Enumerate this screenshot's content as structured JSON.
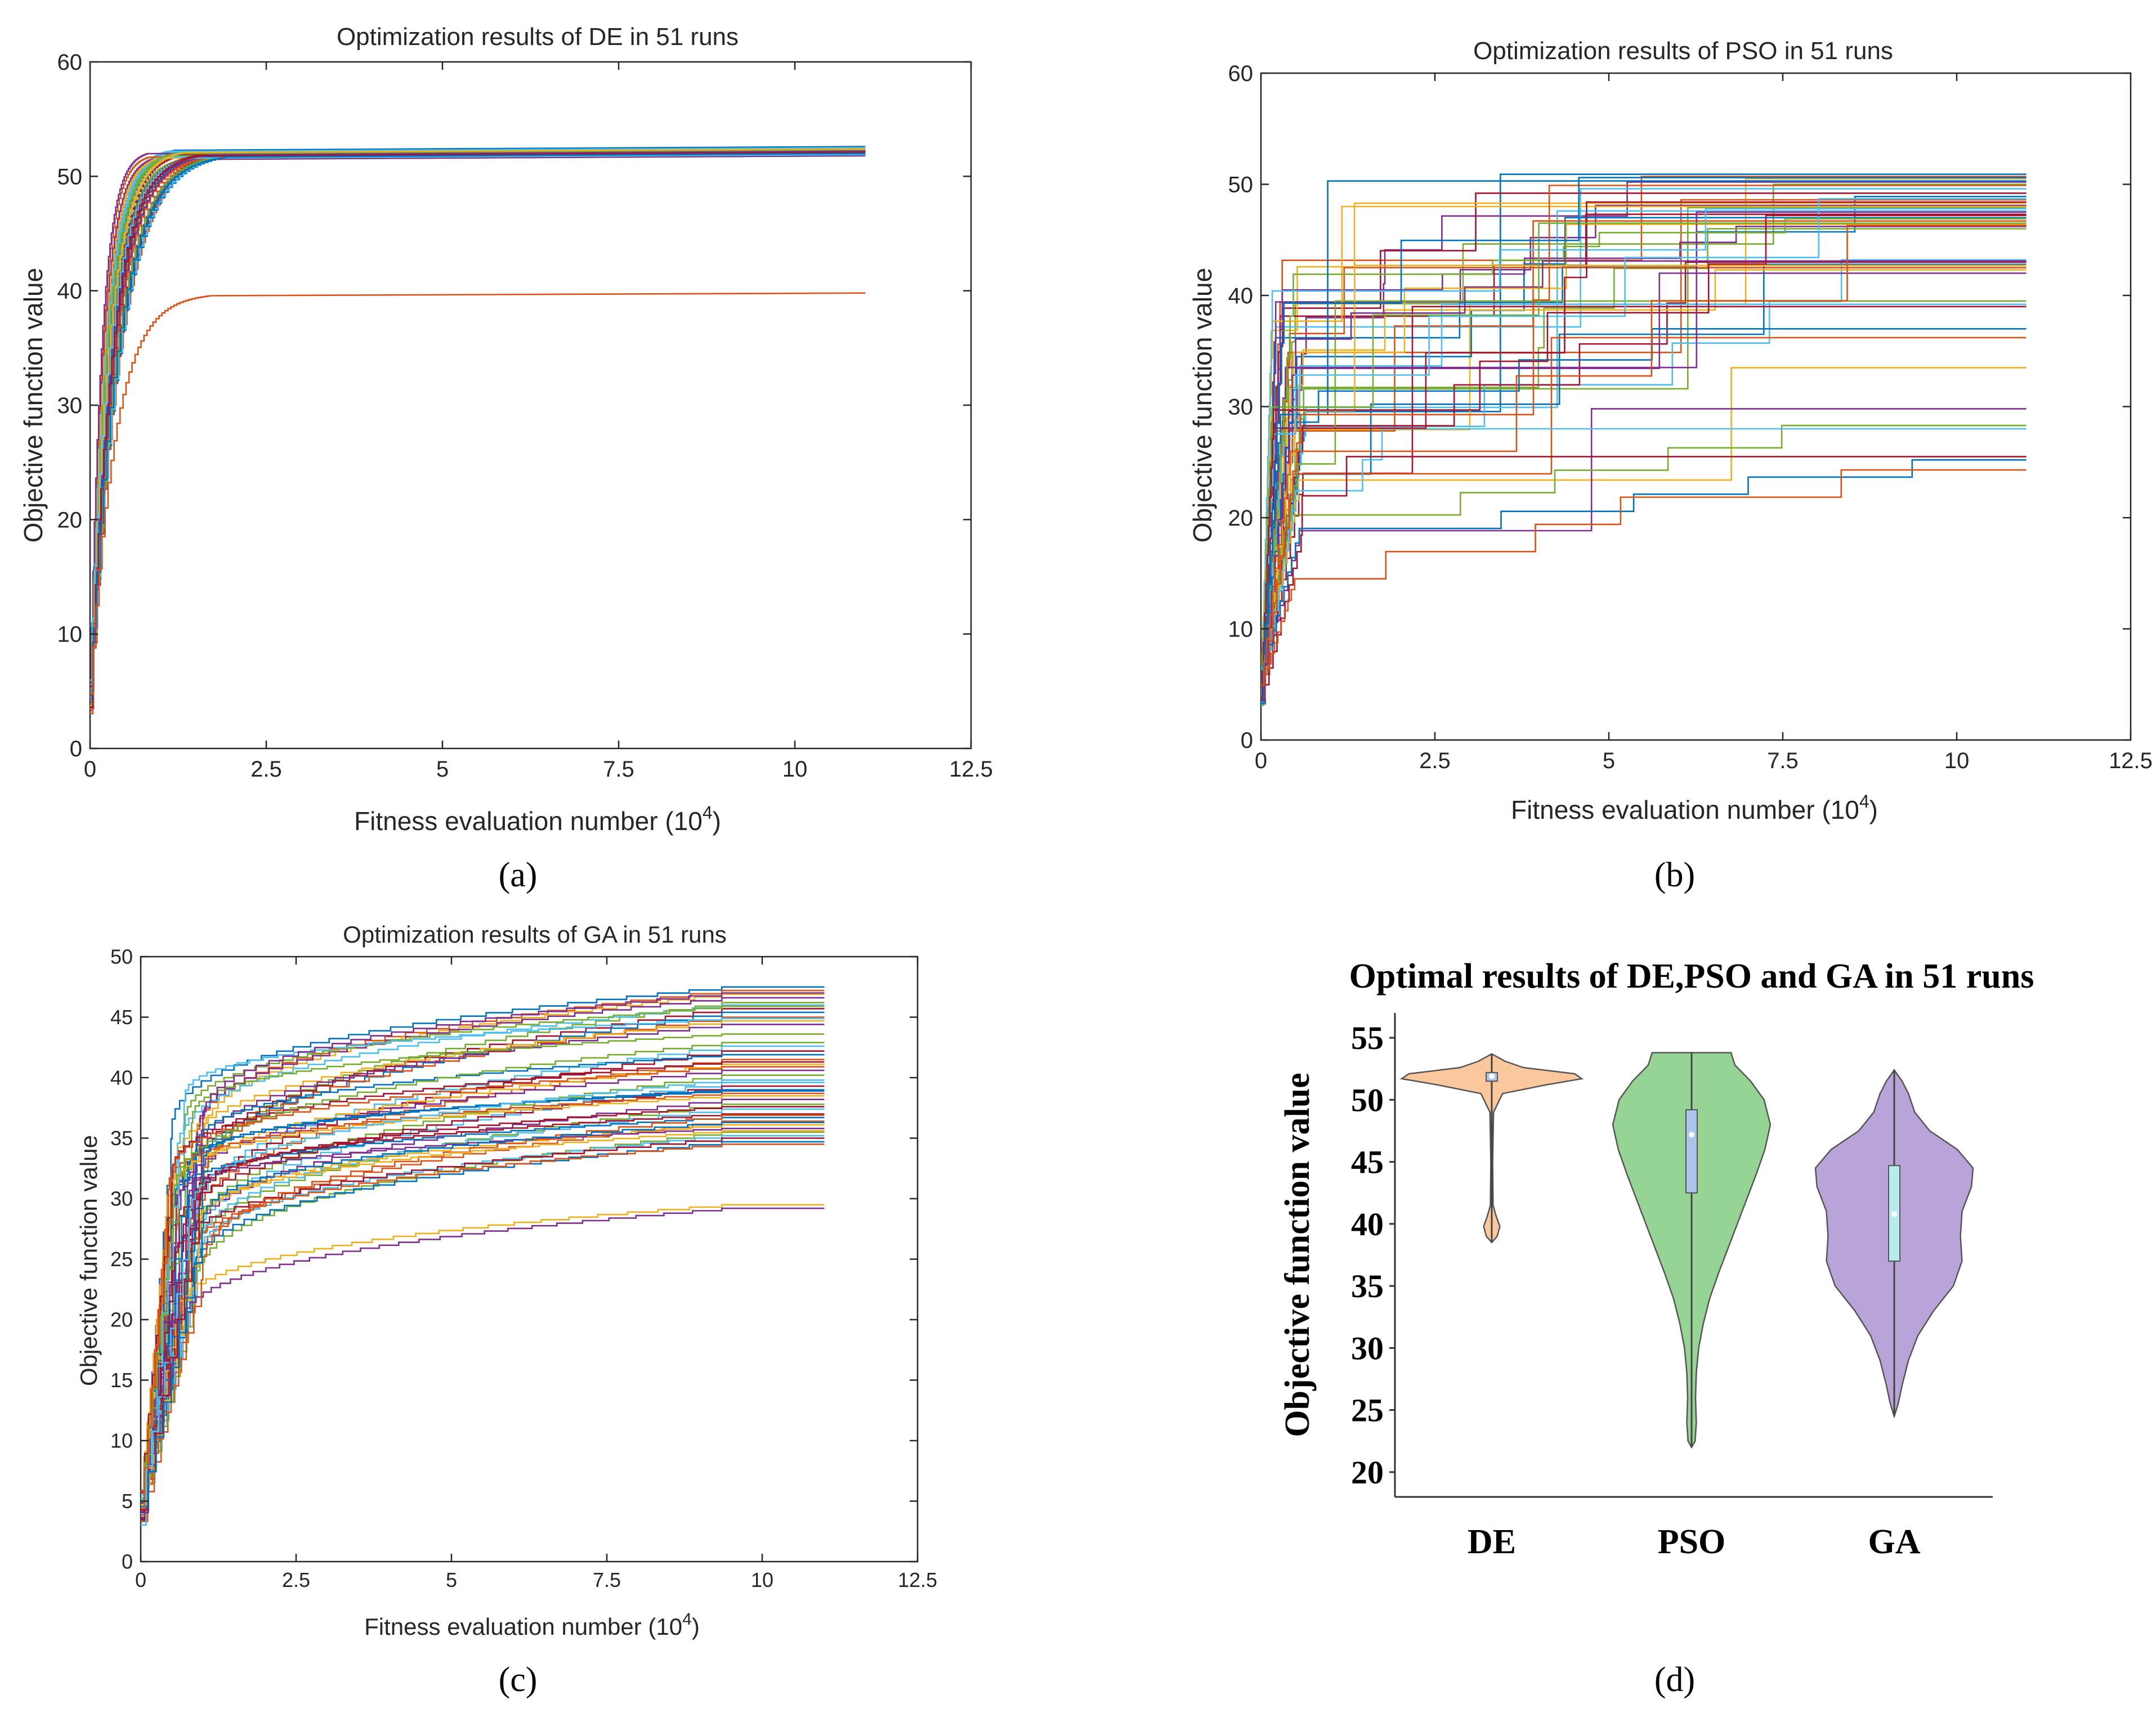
{
  "chart_data": [
    {
      "id": "a",
      "type": "line",
      "title": "Optimization results of DE in 51 runs",
      "xlabel": "Fitness evaluation number (10",
      "xlabel_exp": "4",
      "xlabel_close": ")",
      "ylabel": "Objective function value",
      "xlim": [
        0,
        12.5
      ],
      "ylim": [
        0,
        60
      ],
      "xticks": [
        "0",
        "2.5",
        "5",
        "7.5",
        "10",
        "12.5"
      ],
      "yticks": [
        "0",
        "10",
        "20",
        "30",
        "40",
        "50",
        "60"
      ],
      "panel_label": "(a)",
      "series_count": 51,
      "max_eval": 11,
      "final_values": [
        52.6,
        52.5,
        52.3,
        52.2,
        52.1,
        52.0,
        51.9,
        52.4,
        52.2,
        52.0,
        51.9,
        52.1,
        52.3,
        52.0,
        51.8,
        52.2,
        52.1,
        52.0,
        51.9,
        52.5,
        52.3,
        52.2,
        52.1,
        52.0,
        51.9,
        51.8,
        52.4,
        52.2,
        52.1,
        52.0,
        51.9,
        52.3,
        52.1,
        52.0,
        51.9,
        52.2,
        52.1,
        52.0,
        51.8,
        52.3,
        52.2,
        52.1,
        52.0,
        51.9,
        52.4,
        52.2,
        52.0,
        51.9,
        52.1,
        52.0,
        39.8
      ]
    },
    {
      "id": "b",
      "type": "line",
      "title": "Optimization results of PSO in 51 runs",
      "xlabel": "Fitness evaluation number (10",
      "xlabel_exp": "4",
      "xlabel_close": ")",
      "ylabel": "Objective function value",
      "xlim": [
        0,
        12.5
      ],
      "ylim": [
        0,
        60
      ],
      "xticks": [
        "0",
        "2.5",
        "5",
        "7.5",
        "10",
        "12.5"
      ],
      "yticks": [
        "0",
        "10",
        "20",
        "30",
        "40",
        "50",
        "60"
      ],
      "panel_label": "(b)",
      "series_count": 51,
      "max_eval": 11,
      "final_values": [
        50.9,
        50.7,
        50.5,
        50.2,
        50.0,
        49.6,
        49.2,
        48.9,
        48.6,
        48.3,
        48.1,
        47.9,
        47.6,
        47.3,
        47.0,
        46.7,
        46.4,
        46.2,
        46.0,
        43.2,
        43.0,
        42.8,
        42.5,
        42.3,
        42.0,
        39.5,
        39.2,
        39.0,
        37.0,
        36.2,
        33.5,
        29.8,
        28.3,
        28.0,
        25.5,
        25.2,
        24.3,
        48.0,
        47.5,
        46.9,
        47.8,
        48.4,
        50.3,
        49.9,
        42.7,
        43.1,
        46.5,
        48.7,
        47.2,
        50.6,
        46.3
      ]
    },
    {
      "id": "c",
      "type": "line",
      "title": "Optimization results of GA in 51 runs",
      "xlabel": "Fitness evaluation number (10",
      "xlabel_exp": "4",
      "xlabel_close": ")",
      "ylabel": "Objective function value",
      "xlim": [
        0,
        12.5
      ],
      "ylim": [
        0,
        50
      ],
      "xticks": [
        "0",
        "2.5",
        "5",
        "7.5",
        "10",
        "12.5"
      ],
      "yticks": [
        "0",
        "5",
        "10",
        "15",
        "20",
        "25",
        "30",
        "35",
        "40",
        "45",
        "50"
      ],
      "panel_label": "(c)",
      "series_count": 51,
      "max_eval": 11,
      "final_values": [
        47.5,
        47.2,
        46.9,
        46.6,
        46.2,
        46.0,
        45.7,
        45.4,
        45.0,
        44.7,
        44.4,
        43.6,
        42.6,
        42.2,
        41.9,
        41.5,
        41.1,
        40.6,
        40.2,
        39.6,
        39.3,
        39.0,
        38.7,
        38.5,
        38.2,
        37.8,
        37.4,
        37.0,
        36.7,
        36.4,
        36.1,
        35.8,
        35.5,
        35.2,
        35.0,
        34.7,
        34.5,
        29.5,
        29.2,
        45.9,
        44.9,
        41.3,
        38.9,
        36.9,
        35.6,
        47.0,
        42.9,
        39.8,
        37.6,
        36.3,
        40.9
      ]
    },
    {
      "id": "d",
      "type": "violin",
      "title": "Optimal results of DE,PSO and GA in 51 runs",
      "ylabel": "Objective function value",
      "yticks": [
        "20",
        "25",
        "30",
        "35",
        "40",
        "45",
        "50",
        "55"
      ],
      "ylim": [
        18,
        57
      ],
      "categories": [
        "DE",
        "PSO",
        "GA"
      ],
      "panel_label": "(d)",
      "violins": [
        {
          "name": "DE",
          "color": "#FBC89E",
          "box_color": "#A9C6E8",
          "min": 38.5,
          "q1": 51.5,
          "median": 51.9,
          "q3": 52.2,
          "max": 53.7,
          "profile": [
            [
              38.5,
              0
            ],
            [
              39.0,
              0.06
            ],
            [
              39.8,
              0.09
            ],
            [
              40.6,
              0.05
            ],
            [
              41.5,
              0.015
            ],
            [
              45,
              0.01
            ],
            [
              49,
              0.02
            ],
            [
              50.5,
              0.12
            ],
            [
              51.2,
              0.6
            ],
            [
              51.7,
              1.0
            ],
            [
              52.1,
              0.92
            ],
            [
              52.6,
              0.35
            ],
            [
              53.1,
              0.15
            ],
            [
              53.7,
              0
            ]
          ]
        },
        {
          "name": "PSO",
          "color": "#95D495",
          "box_color": "#A9C6E8",
          "min": 22.0,
          "q1": 42.5,
          "median": 47.2,
          "q3": 49.2,
          "max": 53.8,
          "profile": [
            [
              22.0,
              0
            ],
            [
              22.5,
              0.045
            ],
            [
              24.0,
              0.06
            ],
            [
              26.0,
              0.05
            ],
            [
              28.0,
              0.06
            ],
            [
              30.0,
              0.09
            ],
            [
              32.0,
              0.15
            ],
            [
              34.0,
              0.23
            ],
            [
              36.0,
              0.34
            ],
            [
              38.0,
              0.46
            ],
            [
              40.0,
              0.58
            ],
            [
              42.0,
              0.7
            ],
            [
              44.0,
              0.82
            ],
            [
              46.0,
              0.93
            ],
            [
              48.0,
              1.0
            ],
            [
              50.0,
              0.92
            ],
            [
              51.5,
              0.75
            ],
            [
              52.8,
              0.55
            ],
            [
              53.8,
              0.5
            ]
          ]
        },
        {
          "name": "GA",
          "color": "#B8A4D8",
          "box_color": "#B8ECEC",
          "min": 24.5,
          "q1": 37.0,
          "median": 40.8,
          "q3": 44.7,
          "max": 52.4,
          "profile": [
            [
              24.5,
              0
            ],
            [
              25.5,
              0.05
            ],
            [
              27.0,
              0.1
            ],
            [
              29.0,
              0.18
            ],
            [
              31.0,
              0.3
            ],
            [
              33.0,
              0.5
            ],
            [
              35.0,
              0.75
            ],
            [
              37.0,
              0.86
            ],
            [
              39.0,
              0.84
            ],
            [
              41.0,
              0.86
            ],
            [
              43.0,
              0.98
            ],
            [
              44.5,
              1.0
            ],
            [
              46.0,
              0.8
            ],
            [
              47.5,
              0.45
            ],
            [
              49.0,
              0.26
            ],
            [
              50.5,
              0.18
            ],
            [
              51.5,
              0.1
            ],
            [
              52.4,
              0
            ]
          ]
        }
      ]
    }
  ]
}
